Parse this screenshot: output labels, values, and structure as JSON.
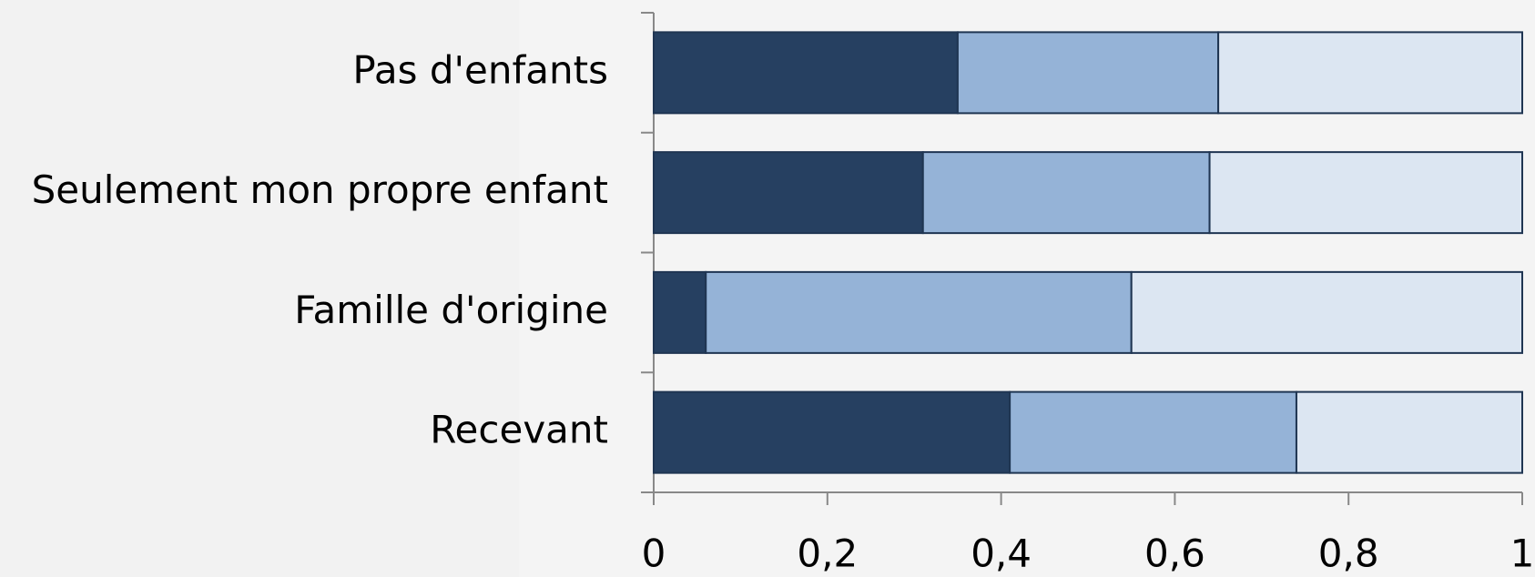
{
  "chart_data": {
    "type": "stacked-bar-horizontal",
    "categories": [
      "Pas d'enfants",
      "Seulement mon propre enfant",
      "Famille d'origine",
      "Recevant"
    ],
    "series": [
      {
        "color": "#264061",
        "values": [
          0.35,
          0.31,
          0.06,
          0.41
        ]
      },
      {
        "color": "#95b3d7",
        "values": [
          0.3,
          0.33,
          0.49,
          0.33
        ]
      },
      {
        "color": "#dce6f2",
        "values": [
          0.35,
          0.36,
          0.45,
          0.26
        ]
      }
    ],
    "xlim": [
      0,
      1
    ],
    "xticks": [
      0,
      {
        "value": 0.2,
        "label": "0,2"
      },
      {
        "value": 0.4,
        "label": "0,4"
      },
      {
        "value": 0.6,
        "label": "0,6"
      },
      {
        "value": 0.8,
        "label": "0,8"
      },
      1
    ]
  }
}
